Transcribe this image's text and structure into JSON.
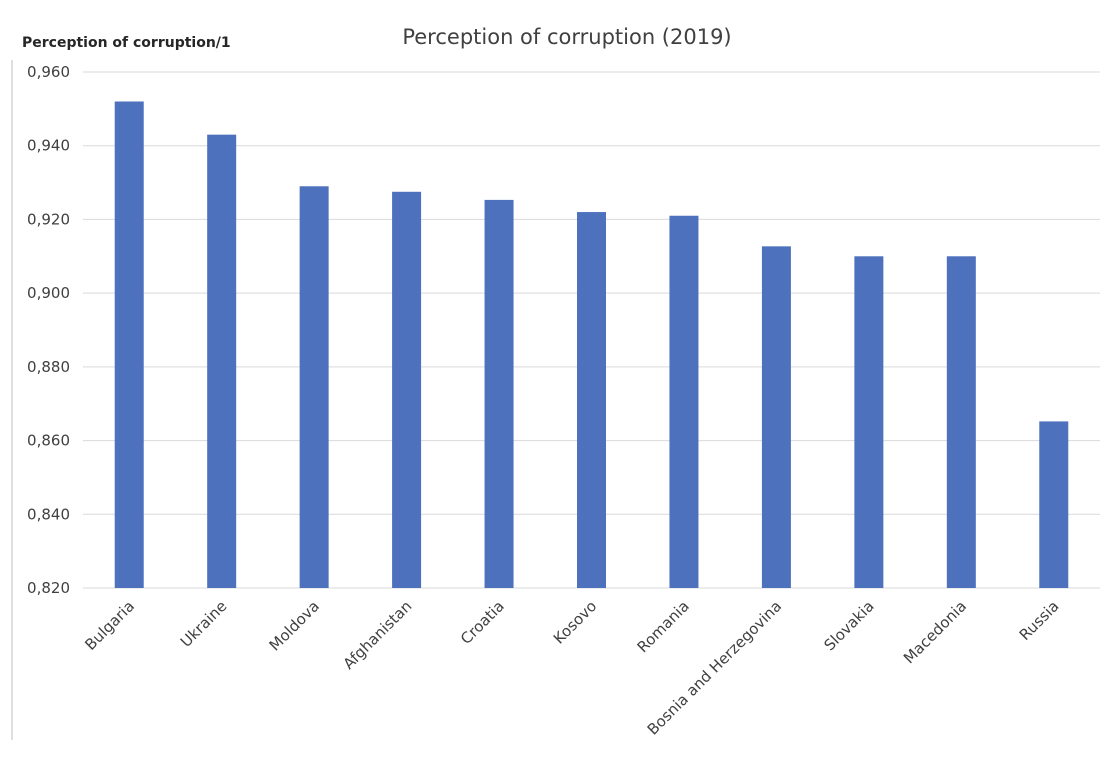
{
  "chart_data": {
    "type": "bar",
    "title": "Perception of corruption (2019)",
    "ylabel": "Perception of corruption/1",
    "xlabel": "",
    "categories": [
      "Bulgaria",
      "Ukraine",
      "Moldova",
      "Afghanistan",
      "Croatia",
      "Kosovo",
      "Romania",
      "Bosnia and Herzegovina",
      "Slovakia",
      "Macedonia",
      "Russia"
    ],
    "values": [
      0.952,
      0.943,
      0.929,
      0.9275,
      0.9253,
      0.922,
      0.921,
      0.9127,
      0.91,
      0.91,
      0.8652
    ],
    "ylim": [
      0.82,
      0.96
    ],
    "yticks": [
      "0,820",
      "0,840",
      "0,860",
      "0,880",
      "0,900",
      "0,920",
      "0,940",
      "0,960"
    ],
    "grid": true,
    "bar_color": "#4e71be"
  }
}
